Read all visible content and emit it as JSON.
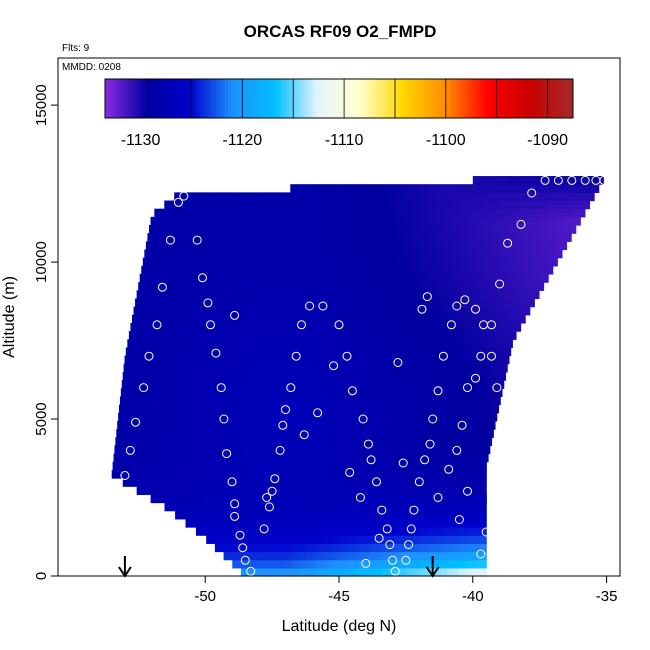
{
  "chart_data": {
    "type": "heatmap",
    "title": "ORCAS RF09 O2_FMPD",
    "annotations": {
      "flights": "Flts: 9",
      "date": "MMDD: 0208"
    },
    "xlabel": "Latitude (deg N)",
    "ylabel": "Altitude (m)",
    "xlim": [
      -55.5,
      -34.5
    ],
    "ylim": [
      0,
      16500
    ],
    "x_ticks": [
      -50,
      -45,
      -40,
      -35
    ],
    "x_tick_labels": [
      "-50",
      "-45",
      "-40",
      "-35"
    ],
    "y_ticks": [
      0,
      5000,
      10000,
      15000
    ],
    "y_tick_labels": [
      "0",
      "5000",
      "10000",
      "15000"
    ],
    "colorbar": {
      "range": [
        -1133.5,
        -1087.5
      ],
      "ticks": [
        -1130,
        -1120,
        -1110,
        -1100,
        -1090
      ],
      "tick_labels": [
        "-1130",
        "-1120",
        "-1110",
        "-1100",
        "-1090"
      ],
      "divisions": [
        -1125,
        -1120,
        -1115,
        -1110,
        -1105,
        -1100,
        -1095,
        -1090
      ],
      "colors": [
        "#8a2be2",
        "#00009f",
        "#0000cd",
        "#1e90ff",
        "#00bfff",
        "#e6f4ff",
        "#ffffcc",
        "#ffd700",
        "#ff8c00",
        "#ff0000",
        "#c80000",
        "#a52a2a"
      ]
    },
    "domain_outline_deg_m": {
      "left": [
        [
          -51.0,
          12200
        ],
        [
          -52.0,
          11500
        ],
        [
          -53.0,
          7000
        ],
        [
          -53.5,
          3200
        ],
        [
          -51.5,
          2200
        ],
        [
          -50.0,
          1200
        ],
        [
          -48.5,
          0
        ]
      ],
      "right": [
        [
          -35.0,
          12800
        ],
        [
          -38.5,
          7500
        ],
        [
          -39.5,
          3500
        ],
        [
          -39.5,
          0
        ]
      ]
    },
    "arrows_lat": [
      -53.0,
      -41.5
    ],
    "sample_points_deg_m": [
      [
        -53.0,
        3200
      ],
      [
        -52.8,
        4000
      ],
      [
        -52.6,
        4900
      ],
      [
        -52.3,
        6000
      ],
      [
        -52.1,
        7000
      ],
      [
        -51.8,
        8000
      ],
      [
        -51.6,
        9200
      ],
      [
        -51.3,
        10700
      ],
      [
        -51.0,
        11900
      ],
      [
        -50.8,
        12100
      ],
      [
        -50.3,
        10700
      ],
      [
        -50.1,
        9500
      ],
      [
        -49.9,
        8700
      ],
      [
        -49.8,
        8000
      ],
      [
        -49.6,
        7100
      ],
      [
        -49.4,
        6000
      ],
      [
        -49.3,
        5000
      ],
      [
        -49.2,
        3900
      ],
      [
        -49.0,
        3000
      ],
      [
        -48.9,
        2300
      ],
      [
        -48.9,
        1900
      ],
      [
        -48.7,
        1300
      ],
      [
        -48.6,
        900
      ],
      [
        -48.5,
        500
      ],
      [
        -48.3,
        150
      ],
      [
        -47.8,
        1500
      ],
      [
        -47.6,
        2200
      ],
      [
        -47.5,
        2700
      ],
      [
        -47.4,
        3100
      ],
      [
        -47.2,
        4000
      ],
      [
        -47.1,
        4800
      ],
      [
        -47.0,
        5300
      ],
      [
        -46.8,
        6000
      ],
      [
        -46.6,
        7000
      ],
      [
        -46.4,
        8000
      ],
      [
        -46.1,
        8600
      ],
      [
        -45.6,
        8600
      ],
      [
        -45.0,
        8000
      ],
      [
        -44.7,
        7000
      ],
      [
        -44.5,
        5900
      ],
      [
        -44.1,
        5000
      ],
      [
        -43.9,
        4200
      ],
      [
        -43.8,
        3700
      ],
      [
        -43.6,
        3000
      ],
      [
        -43.4,
        2100
      ],
      [
        -43.2,
        1500
      ],
      [
        -43.1,
        1000
      ],
      [
        -43.0,
        500
      ],
      [
        -42.9,
        150
      ],
      [
        -42.5,
        500
      ],
      [
        -42.4,
        1000
      ],
      [
        -42.3,
        1500
      ],
      [
        -42.2,
        2100
      ],
      [
        -42.0,
        3000
      ],
      [
        -41.8,
        3700
      ],
      [
        -41.6,
        4200
      ],
      [
        -41.5,
        5000
      ],
      [
        -41.3,
        5900
      ],
      [
        -41.1,
        7000
      ],
      [
        -40.8,
        8000
      ],
      [
        -40.6,
        8600
      ],
      [
        -40.3,
        8800
      ],
      [
        -39.9,
        8500
      ],
      [
        -39.6,
        8000
      ],
      [
        -39.3,
        7000
      ],
      [
        -39.1,
        6000
      ],
      [
        -38.9,
        5000
      ],
      [
        -38.7,
        4200
      ],
      [
        -38.5,
        3400
      ],
      [
        -38.4,
        2700
      ],
      [
        -38.3,
        2100
      ],
      [
        -38.2,
        1500
      ],
      [
        -38.1,
        1000
      ],
      [
        -38.0,
        500
      ],
      [
        -37.9,
        150
      ],
      [
        -41.3,
        2500
      ],
      [
        -40.9,
        3400
      ],
      [
        -40.6,
        4000
      ],
      [
        -40.4,
        4800
      ],
      [
        -40.2,
        6000
      ],
      [
        -39.9,
        6300
      ],
      [
        -39.7,
        7000
      ],
      [
        -39.3,
        8000
      ],
      [
        -39.0,
        9300
      ],
      [
        -38.7,
        10600
      ],
      [
        -38.2,
        11200
      ],
      [
        -37.8,
        12200
      ],
      [
        -37.3,
        12600
      ],
      [
        -36.8,
        12600
      ],
      [
        -36.3,
        12600
      ],
      [
        -35.8,
        12600
      ],
      [
        -35.4,
        12600
      ],
      [
        -35.1,
        12600
      ],
      [
        -44.0,
        400
      ],
      [
        -43.5,
        1200
      ],
      [
        -44.2,
        2500
      ],
      [
        -45.8,
        5200
      ],
      [
        -46.3,
        4500
      ],
      [
        -45.2,
        6700
      ],
      [
        -42.8,
        6800
      ],
      [
        -41.9,
        8500
      ],
      [
        -40.5,
        1800
      ],
      [
        -39.5,
        1400
      ],
      [
        -39.7,
        700
      ],
      [
        -40.2,
        2700
      ],
      [
        -41.7,
        8900
      ],
      [
        -42.6,
        3600
      ],
      [
        -44.6,
        3300
      ],
      [
        -47.7,
        2500
      ],
      [
        -48.9,
        8300
      ]
    ]
  }
}
